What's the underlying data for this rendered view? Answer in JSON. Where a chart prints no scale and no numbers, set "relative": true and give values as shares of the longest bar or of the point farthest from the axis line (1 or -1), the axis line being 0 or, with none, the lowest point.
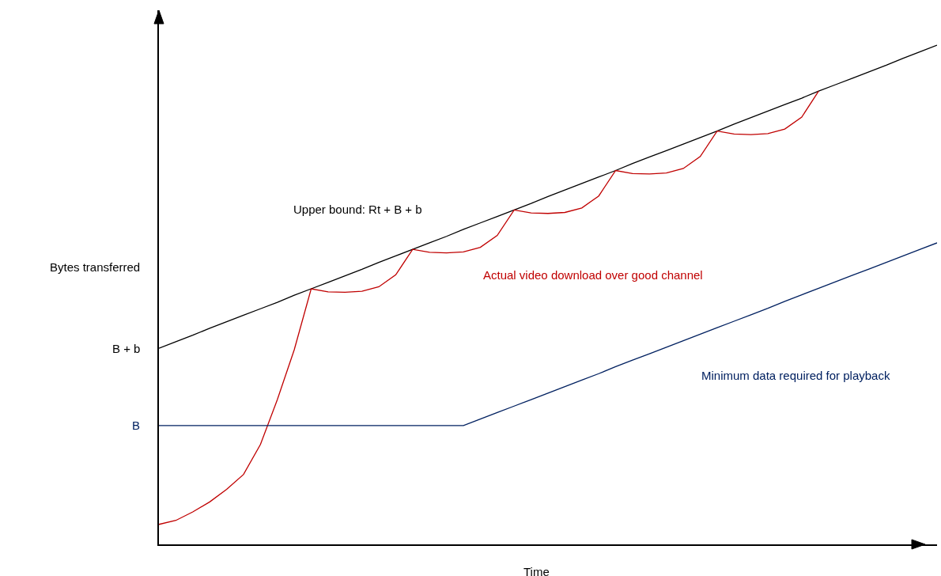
{
  "chart_data": {
    "type": "line",
    "relative": true,
    "xlabel": "Time",
    "ylabel": "Bytes transferred",
    "legend": false,
    "marker": "none",
    "line_style": "solid",
    "categories": [
      null,
      null,
      null,
      null,
      null,
      null,
      null,
      null,
      null,
      null,
      null,
      null,
      null,
      null,
      null,
      null,
      null,
      null,
      null,
      null,
      null,
      null,
      null,
      null,
      null,
      null,
      null,
      null,
      null,
      null,
      null,
      null,
      null,
      null,
      null,
      null,
      null,
      null,
      null,
      null,
      null,
      null,
      null,
      null,
      null,
      null,
      null
    ],
    "series": [
      {
        "name": "Upper bound: Rt + B + b",
        "color": "#000000",
        "values": [
          0.393,
          0.406,
          0.419,
          0.433,
          0.446,
          0.459,
          0.472,
          0.485,
          0.499,
          0.512,
          0.525,
          0.538,
          0.551,
          0.565,
          0.578,
          0.591,
          0.604,
          0.617,
          0.631,
          0.644,
          0.657,
          0.67,
          0.683,
          0.697,
          0.71,
          0.723,
          0.736,
          0.749,
          0.763,
          0.776,
          0.789,
          0.802,
          0.815,
          0.828,
          0.842,
          0.855,
          0.868,
          0.881,
          0.894,
          0.908,
          0.921,
          0.934,
          0.947,
          0.96,
          0.974,
          0.987,
          1.0
        ]
      },
      {
        "name": "Actual video download over good channel",
        "color": "#c00000",
        "values": [
          0.04,
          0.048,
          0.065,
          0.085,
          0.11,
          0.14,
          0.2,
          0.29,
          0.39,
          0.512,
          0.506,
          0.505,
          0.507,
          0.516,
          0.54,
          0.591,
          0.585,
          0.584,
          0.586,
          0.595,
          0.619,
          0.67,
          0.664,
          0.663,
          0.665,
          0.674,
          0.698,
          0.749,
          0.743,
          0.742,
          0.744,
          0.753,
          0.777,
          0.828,
          0.822,
          0.821,
          0.823,
          0.832,
          0.856,
          0.908,
          null,
          null,
          null,
          null,
          null,
          null,
          null
        ]
      },
      {
        "name": "Minimum data required for playback",
        "color": "#002060",
        "values": [
          0.238,
          0.238,
          0.238,
          0.238,
          0.238,
          0.238,
          0.238,
          0.238,
          0.238,
          0.238,
          0.238,
          0.238,
          0.238,
          0.238,
          0.238,
          0.238,
          0.238,
          0.238,
          0.238,
          0.251,
          0.264,
          0.277,
          0.29,
          0.303,
          0.316,
          0.329,
          0.342,
          0.356,
          0.369,
          0.382,
          0.395,
          0.408,
          0.421,
          0.434,
          0.447,
          0.46,
          0.473,
          0.487,
          0.5,
          0.513,
          0.526,
          0.539,
          0.552,
          0.565,
          0.578,
          0.591,
          0.604
        ]
      }
    ],
    "annotations": [
      "B + b",
      "B"
    ]
  }
}
